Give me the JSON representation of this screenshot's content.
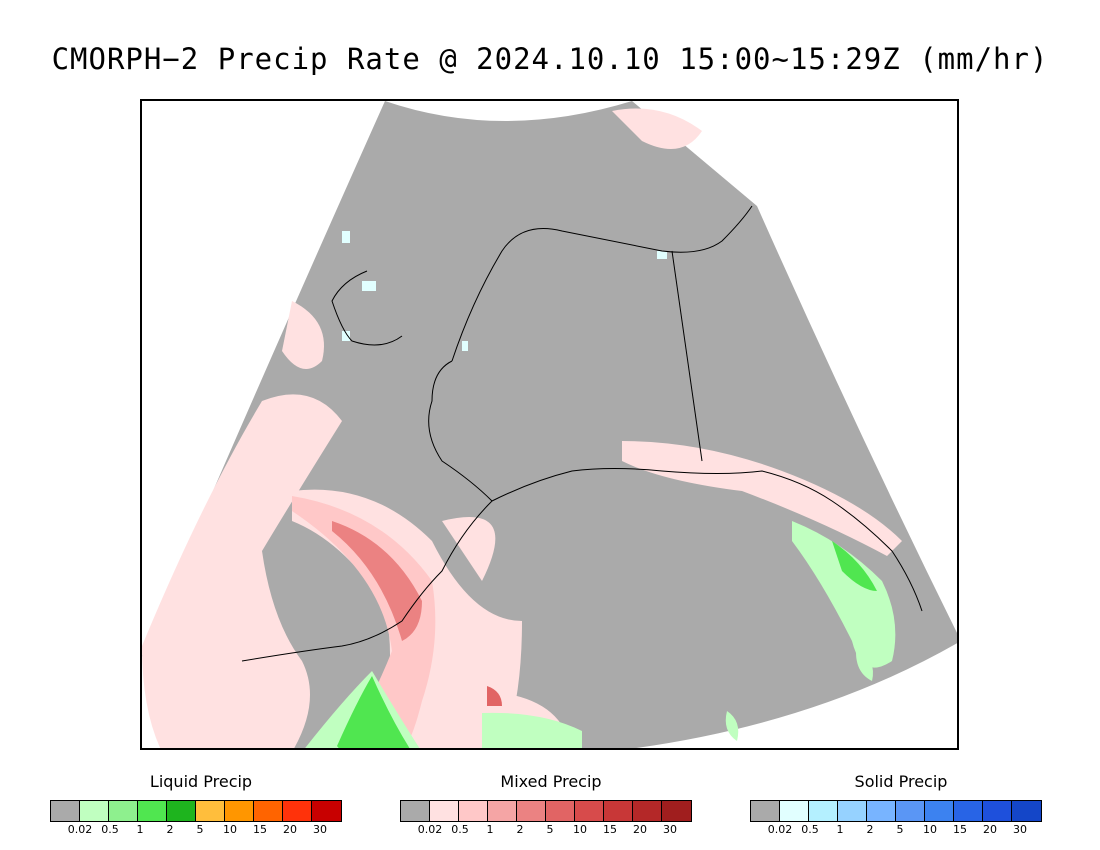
{
  "title": "CMORPH−2 Precip Rate @ 2024.10.10 15:00~15:29Z (mm/hr)",
  "map": {
    "region": "Alaska",
    "no_data_color": "#ffffff",
    "low_precip_color": "#aaaaaa"
  },
  "legends": [
    {
      "title": "Liquid Precip",
      "colors": [
        "#aaaaaa",
        "#c0ffc0",
        "#8ef08e",
        "#50e650",
        "#1eb41e",
        "#ffbe3c",
        "#ff9600",
        "#ff6400",
        "#ff320a",
        "#c80000"
      ],
      "ticks": [
        "0.02",
        "0.5",
        "1",
        "2",
        "5",
        "10",
        "15",
        "20",
        "30"
      ]
    },
    {
      "title": "Mixed Precip",
      "colors": [
        "#aaaaaa",
        "#ffe1e1",
        "#ffc8c8",
        "#f5a5a5",
        "#eb8282",
        "#e16464",
        "#d74b4b",
        "#c83737",
        "#b42828",
        "#a01e1e"
      ],
      "ticks": [
        "0.02",
        "0.5",
        "1",
        "2",
        "5",
        "10",
        "15",
        "20",
        "30"
      ]
    },
    {
      "title": "Solid Precip",
      "colors": [
        "#aaaaaa",
        "#e1ffff",
        "#b4f0ff",
        "#96d2ff",
        "#78b4ff",
        "#5a96f5",
        "#3c82f0",
        "#2864e6",
        "#1e50dc",
        "#1446c8"
      ],
      "ticks": [
        "0.02",
        "0.5",
        "1",
        "2",
        "5",
        "10",
        "15",
        "20",
        "30"
      ]
    }
  ]
}
